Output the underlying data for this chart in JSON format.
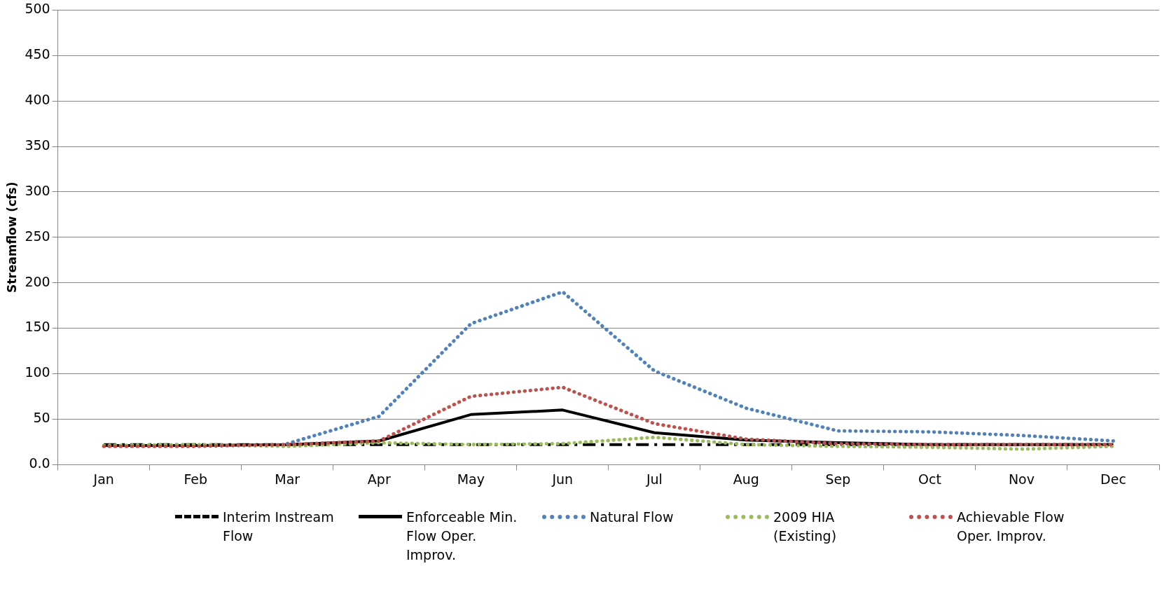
{
  "chart_data": {
    "type": "line",
    "ylabel": "Streamflow (cfs)",
    "categories": [
      "Jan",
      "Feb",
      "Mar",
      "Apr",
      "May",
      "Jun",
      "Jul",
      "Aug",
      "Sep",
      "Oct",
      "Nov",
      "Dec"
    ],
    "series": [
      {
        "name": "Interim Instream Flow",
        "color": "#000000",
        "line_style": "dashed",
        "values": [
          22,
          22,
          22,
          22,
          22,
          22,
          22,
          22,
          22,
          22,
          22,
          22
        ]
      },
      {
        "name": "Enforceable Min. Flow Oper. Improv.",
        "color": "#000000",
        "line_style": "solid",
        "values": [
          21,
          21,
          22,
          26,
          55,
          60,
          35,
          27,
          24,
          22,
          22,
          22
        ]
      },
      {
        "name": "Natural Flow",
        "color": "#4f81bd",
        "line_style": "dotted",
        "values": [
          null,
          null,
          23,
          53,
          155,
          190,
          103,
          62,
          37,
          36,
          32,
          26
        ]
      },
      {
        "name": "2009 HIA (Existing)",
        "color": "#9bbb59",
        "line_style": "dotted",
        "values": [
          21,
          22,
          20,
          24,
          22,
          23,
          30,
          22,
          20,
          19,
          17,
          20
        ]
      },
      {
        "name": "Achievable Flow Oper. Improv.",
        "color": "#c0504d",
        "line_style": "dotted",
        "values": [
          20,
          20,
          22,
          26,
          75,
          85,
          45,
          28,
          23,
          22,
          22,
          22
        ]
      }
    ],
    "ylim": [
      0,
      500
    ],
    "yticks": [
      {
        "value": 0,
        "label": "0.0"
      },
      50,
      100,
      150,
      200,
      250,
      300,
      350,
      400,
      450,
      500
    ],
    "grid": "y",
    "legend": "bottom",
    "marker": "none"
  }
}
